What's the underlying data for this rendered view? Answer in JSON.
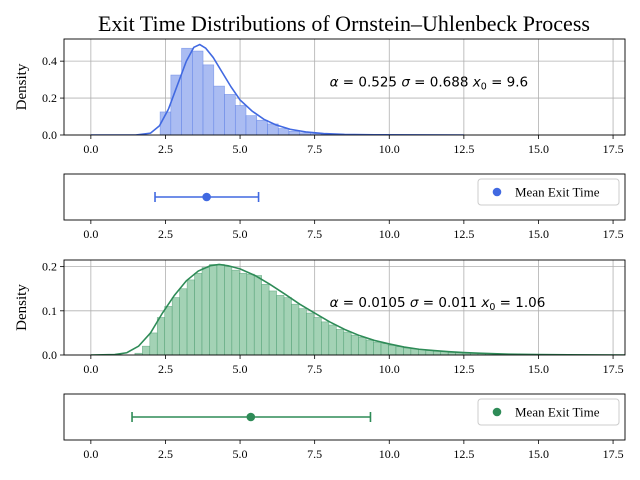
{
  "title": "Exit Time Distributions of Ornstein–Uhlenbeck Process",
  "chart_data": [
    {
      "type": "bar",
      "role": "histogram",
      "ylabel": "Density",
      "xlim": [
        -0.9,
        17.9
      ],
      "ylim": [
        0,
        0.52
      ],
      "yticks": [
        0.0,
        0.2,
        0.4
      ],
      "xticks": [
        0.0,
        2.5,
        5.0,
        7.5,
        10.0,
        12.5,
        15.0,
        17.5
      ],
      "grid": true,
      "color": "#4169e1",
      "fill": "#aabcf2",
      "bin_width": 0.36,
      "bins": [
        {
          "x": 2.5,
          "y": 0.125
        },
        {
          "x": 2.86,
          "y": 0.325
        },
        {
          "x": 3.22,
          "y": 0.47
        },
        {
          "x": 3.58,
          "y": 0.455
        },
        {
          "x": 3.94,
          "y": 0.38
        },
        {
          "x": 4.3,
          "y": 0.265
        },
        {
          "x": 4.66,
          "y": 0.22
        },
        {
          "x": 5.02,
          "y": 0.16
        },
        {
          "x": 5.38,
          "y": 0.105
        },
        {
          "x": 5.74,
          "y": 0.08
        },
        {
          "x": 6.1,
          "y": 0.06
        },
        {
          "x": 6.46,
          "y": 0.035
        },
        {
          "x": 6.82,
          "y": 0.02
        },
        {
          "x": 7.18,
          "y": 0.012
        },
        {
          "x": 7.54,
          "y": 0.007
        },
        {
          "x": 7.9,
          "y": 0.004
        }
      ],
      "kde": [
        [
          0.0,
          0.0
        ],
        [
          1.5,
          0.0
        ],
        [
          2.0,
          0.01
        ],
        [
          2.3,
          0.05
        ],
        [
          2.6,
          0.14
        ],
        [
          2.9,
          0.27
        ],
        [
          3.2,
          0.4
        ],
        [
          3.45,
          0.475
        ],
        [
          3.65,
          0.49
        ],
        [
          3.85,
          0.47
        ],
        [
          4.1,
          0.42
        ],
        [
          4.4,
          0.34
        ],
        [
          4.7,
          0.26
        ],
        [
          5.0,
          0.19
        ],
        [
          5.4,
          0.13
        ],
        [
          5.8,
          0.085
        ],
        [
          6.2,
          0.055
        ],
        [
          6.7,
          0.03
        ],
        [
          7.2,
          0.017
        ],
        [
          7.8,
          0.008
        ],
        [
          8.5,
          0.003
        ],
        [
          9.5,
          0.001
        ],
        [
          12.5,
          0.0
        ]
      ],
      "annotation": {
        "alpha": "0.525",
        "sigma": "0.688",
        "x0": "9.6",
        "at": [
          8.0,
          0.29
        ]
      }
    },
    {
      "type": "scatter",
      "role": "mean-errorbar",
      "xlim": [
        -0.9,
        17.9
      ],
      "xticks": [
        0.0,
        2.5,
        5.0,
        7.5,
        10.0,
        12.5,
        15.0,
        17.5
      ],
      "color": "#4169e1",
      "mean": 3.88,
      "lower": 2.15,
      "upper": 5.62,
      "legend": "Mean Exit Time",
      "legend_loc": "upper right"
    },
    {
      "type": "bar",
      "role": "histogram",
      "ylabel": "Density",
      "xlim": [
        -0.9,
        17.9
      ],
      "ylim": [
        0,
        0.215
      ],
      "yticks": [
        0.0,
        0.1,
        0.2
      ],
      "xticks": [
        0.0,
        2.5,
        5.0,
        7.5,
        10.0,
        12.5,
        15.0,
        17.5
      ],
      "grid": true,
      "color": "#2e8b57",
      "fill": "#a3d2b5",
      "bin_width": 0.25,
      "bins": [
        {
          "x": 1.6,
          "y": 0.004
        },
        {
          "x": 1.85,
          "y": 0.02
        },
        {
          "x": 2.1,
          "y": 0.05
        },
        {
          "x": 2.35,
          "y": 0.085
        },
        {
          "x": 2.6,
          "y": 0.11
        },
        {
          "x": 2.85,
          "y": 0.13
        },
        {
          "x": 3.1,
          "y": 0.15
        },
        {
          "x": 3.35,
          "y": 0.17
        },
        {
          "x": 3.6,
          "y": 0.185
        },
        {
          "x": 3.85,
          "y": 0.198
        },
        {
          "x": 4.1,
          "y": 0.205
        },
        {
          "x": 4.35,
          "y": 0.205
        },
        {
          "x": 4.6,
          "y": 0.2
        },
        {
          "x": 4.85,
          "y": 0.192
        },
        {
          "x": 5.1,
          "y": 0.185
        },
        {
          "x": 5.35,
          "y": 0.183
        },
        {
          "x": 5.6,
          "y": 0.18
        },
        {
          "x": 5.85,
          "y": 0.16
        },
        {
          "x": 6.1,
          "y": 0.145
        },
        {
          "x": 6.35,
          "y": 0.135
        },
        {
          "x": 6.6,
          "y": 0.13
        },
        {
          "x": 6.85,
          "y": 0.115
        },
        {
          "x": 7.1,
          "y": 0.105
        },
        {
          "x": 7.35,
          "y": 0.095
        },
        {
          "x": 7.6,
          "y": 0.085
        },
        {
          "x": 7.85,
          "y": 0.075
        },
        {
          "x": 8.1,
          "y": 0.068
        },
        {
          "x": 8.35,
          "y": 0.058
        },
        {
          "x": 8.6,
          "y": 0.052
        },
        {
          "x": 8.85,
          "y": 0.045
        },
        {
          "x": 9.1,
          "y": 0.04
        },
        {
          "x": 9.35,
          "y": 0.034
        },
        {
          "x": 9.6,
          "y": 0.029
        },
        {
          "x": 9.85,
          "y": 0.026
        },
        {
          "x": 10.1,
          "y": 0.022
        },
        {
          "x": 10.35,
          "y": 0.019
        },
        {
          "x": 10.6,
          "y": 0.016
        },
        {
          "x": 10.85,
          "y": 0.014
        },
        {
          "x": 11.1,
          "y": 0.012
        },
        {
          "x": 11.35,
          "y": 0.01
        },
        {
          "x": 11.6,
          "y": 0.009
        },
        {
          "x": 11.85,
          "y": 0.008
        },
        {
          "x": 12.1,
          "y": 0.006
        },
        {
          "x": 12.35,
          "y": 0.005
        },
        {
          "x": 12.6,
          "y": 0.004
        },
        {
          "x": 12.85,
          "y": 0.004
        },
        {
          "x": 13.1,
          "y": 0.003
        },
        {
          "x": 13.35,
          "y": 0.003
        },
        {
          "x": 13.6,
          "y": 0.002
        },
        {
          "x": 13.85,
          "y": 0.002
        },
        {
          "x": 14.1,
          "y": 0.002
        },
        {
          "x": 14.35,
          "y": 0.001
        },
        {
          "x": 14.6,
          "y": 0.001
        },
        {
          "x": 14.85,
          "y": 0.001
        },
        {
          "x": 15.1,
          "y": 0.001
        }
      ],
      "kde": [
        [
          0.0,
          0.0
        ],
        [
          0.8,
          0.001
        ],
        [
          1.2,
          0.005
        ],
        [
          1.6,
          0.02
        ],
        [
          2.0,
          0.05
        ],
        [
          2.4,
          0.095
        ],
        [
          2.8,
          0.135
        ],
        [
          3.2,
          0.168
        ],
        [
          3.6,
          0.19
        ],
        [
          4.0,
          0.202
        ],
        [
          4.3,
          0.205
        ],
        [
          4.6,
          0.202
        ],
        [
          5.0,
          0.195
        ],
        [
          5.5,
          0.18
        ],
        [
          6.0,
          0.16
        ],
        [
          6.5,
          0.138
        ],
        [
          7.0,
          0.115
        ],
        [
          7.5,
          0.095
        ],
        [
          8.0,
          0.075
        ],
        [
          8.5,
          0.058
        ],
        [
          9.0,
          0.044
        ],
        [
          9.5,
          0.033
        ],
        [
          10.0,
          0.025
        ],
        [
          10.5,
          0.018
        ],
        [
          11.0,
          0.013
        ],
        [
          11.5,
          0.01
        ],
        [
          12.0,
          0.0075
        ],
        [
          12.5,
          0.0055
        ],
        [
          13.0,
          0.004
        ],
        [
          14.0,
          0.002
        ],
        [
          15.0,
          0.001
        ],
        [
          16.0,
          0.0005
        ],
        [
          17.9,
          0.0
        ]
      ],
      "annotation": {
        "alpha": "0.0105",
        "sigma": "0.011",
        "x0": "1.06",
        "at": [
          8.0,
          0.12
        ]
      }
    },
    {
      "type": "scatter",
      "role": "mean-errorbar",
      "xlim": [
        -0.9,
        17.9
      ],
      "xticks": [
        0.0,
        2.5,
        5.0,
        7.5,
        10.0,
        12.5,
        15.0,
        17.5
      ],
      "color": "#2e8b57",
      "mean": 5.36,
      "lower": 1.38,
      "upper": 9.37,
      "legend": "Mean Exit Time",
      "legend_loc": "upper right"
    }
  ]
}
